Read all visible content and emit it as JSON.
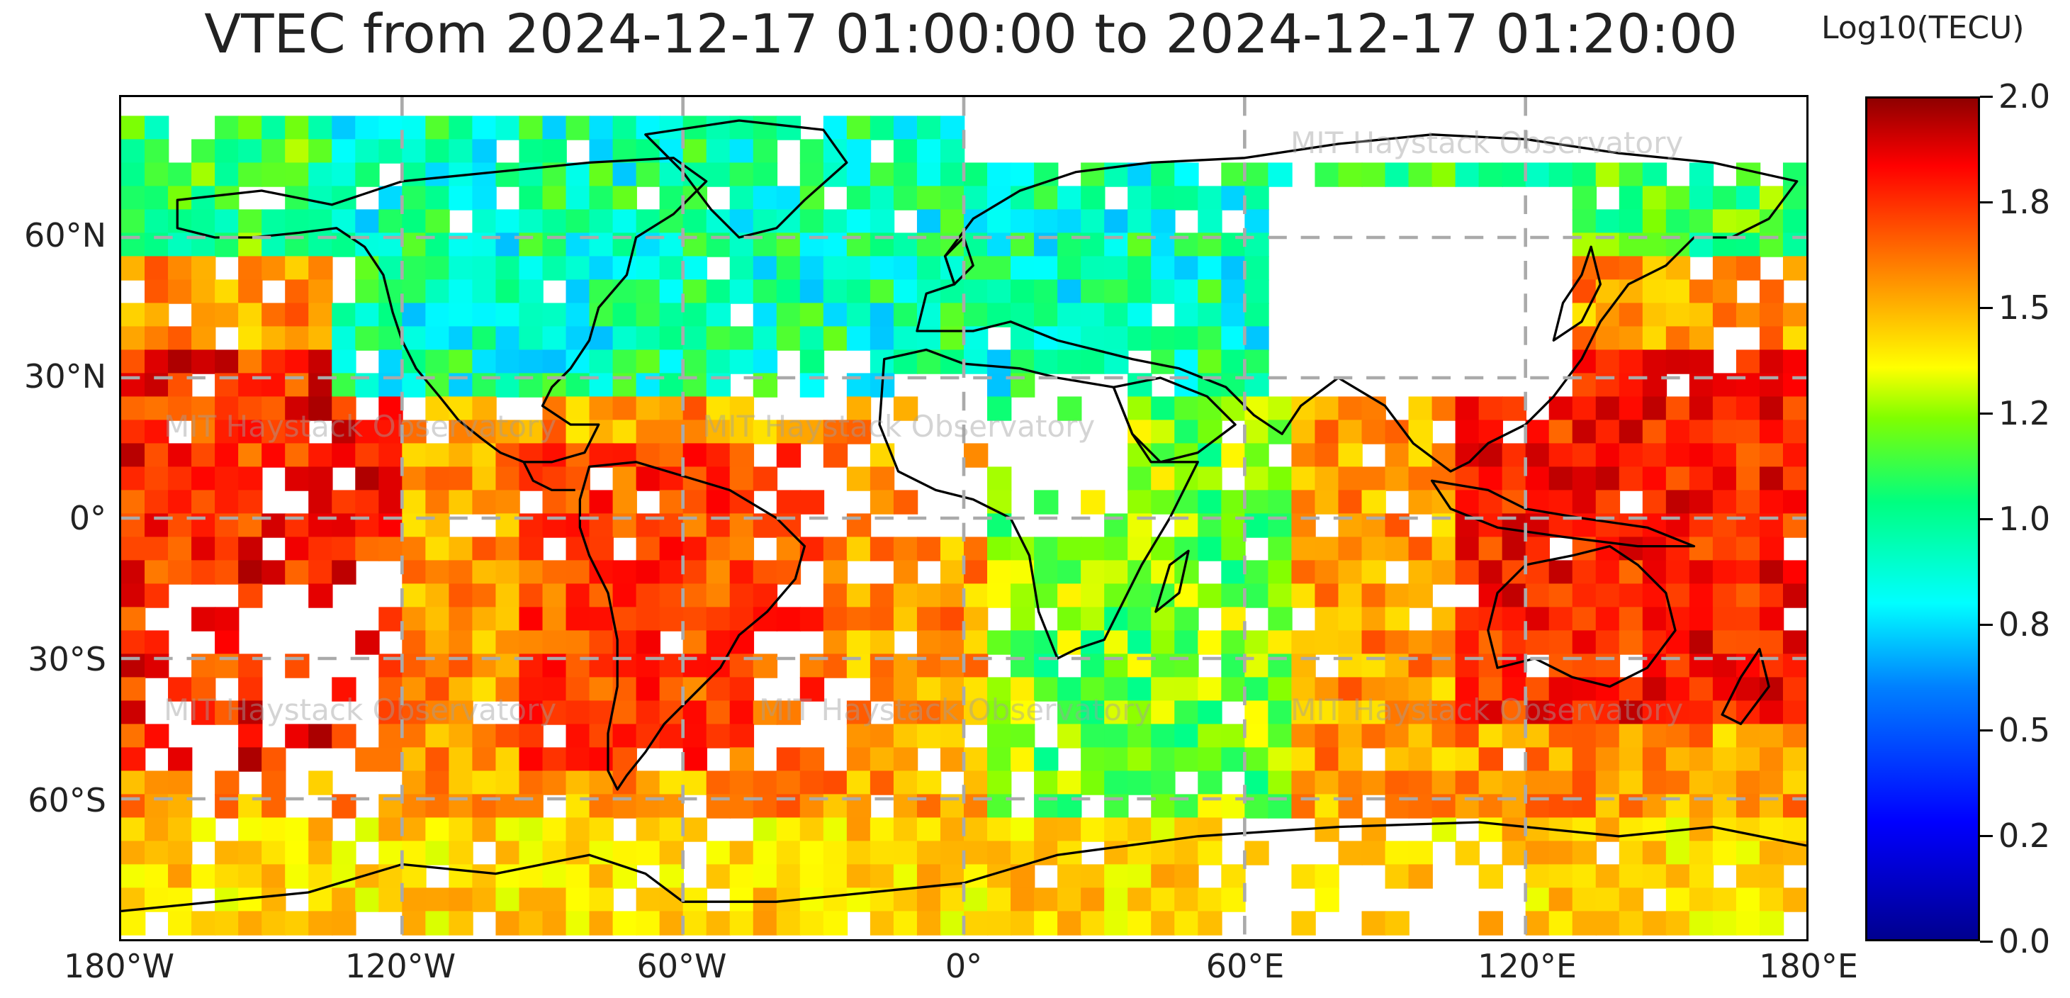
{
  "title": "VTEC from 2024-12-17 01:00:00 to 2024-12-17 01:20:00",
  "colorbar": {
    "title": "Log10(TECU)",
    "ticks": [
      "2.0",
      "1.8",
      "1.5",
      "1.2",
      "1.0",
      "0.8",
      "0.5",
      "0.2",
      "0.0"
    ],
    "range": [
      0.0,
      2.0
    ]
  },
  "axes": {
    "x_ticks": [
      "180°W",
      "120°W",
      "60°W",
      "0°",
      "60°E",
      "120°E",
      "180°E"
    ],
    "y_ticks": [
      "60°N",
      "30°N",
      "0°",
      "30°S",
      "60°S"
    ],
    "lon_range": [
      -180,
      180
    ],
    "lat_range": [
      -90,
      90
    ],
    "grid": true
  },
  "watermark": "MIT Haystack Observatory",
  "colors": {
    "coastline": "#000000",
    "gridline": "#aaaaaa"
  }
}
